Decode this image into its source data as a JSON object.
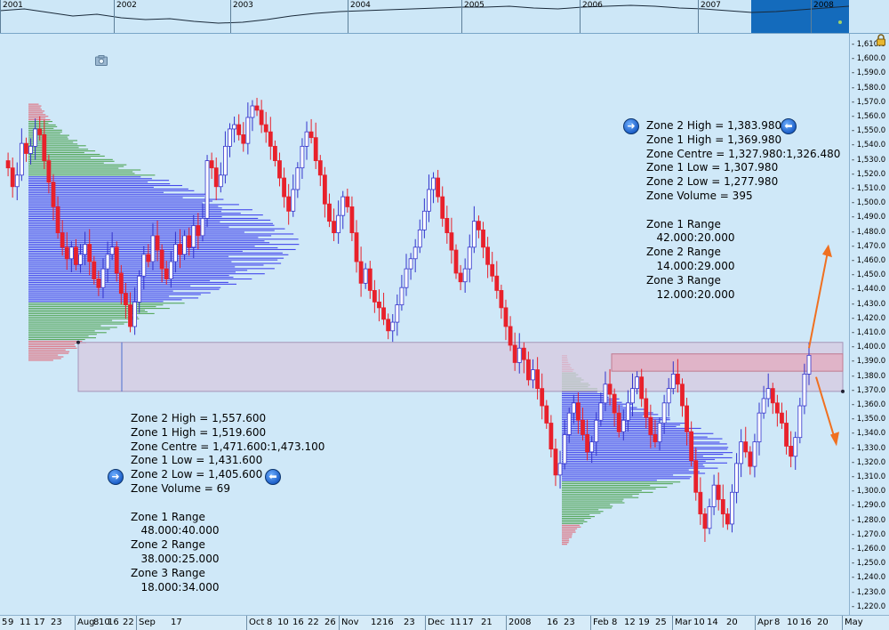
{
  "overview": {
    "years": [
      "2001",
      "2002",
      "2003",
      "2004",
      "2005",
      "2006",
      "2007",
      "2008"
    ]
  },
  "annotations": {
    "left": {
      "lines": [
        "Zone 2 High = 1,557.600",
        "Zone 1 High = 1,519.600",
        "Zone Centre = 1,471.600:1,473.100",
        "Zone 1 Low = 1,431.600",
        "Zone 2 Low = 1,405.600",
        "Zone Volume = 69",
        "",
        "Zone 1 Range",
        "   48.000:40.000",
        "Zone 2 Range",
        "   38.000:25.000",
        "Zone 3 Range",
        "   18.000:34.000"
      ]
    },
    "right": {
      "lines": [
        "Zone 2 High = 1,383.980",
        "Zone 1 High = 1,369.980",
        "Zone Centre = 1,327.980:1,326.480",
        "Zone 1 Low = 1,307.980",
        "Zone 2 Low = 1,277.980",
        "Zone Volume = 395",
        "",
        "Zone 1 Range",
        "   42.000:20.000",
        "Zone 2 Range",
        "   14.000:29.000",
        "Zone 3 Range",
        "   12.000:20.000"
      ]
    }
  },
  "icons": {
    "nav_next": "arrow-right-circle-icon",
    "nav_prev": "arrow-left-circle-icon",
    "lock": "lock-icon",
    "camera": "camera-icon"
  },
  "colors": {
    "background": "#cfe8f8",
    "up_candle": "#3333cc",
    "down_candle": "#e8212b",
    "zone_blue": "#2b2bea",
    "zone_green": "#3e9b3e",
    "zone_red": "#e25a6a",
    "shaded_zone": "#d7c9e0",
    "arrow": "#f07020"
  },
  "chart_data": {
    "type": "candlestick",
    "y_axis": {
      "ylim": [
        1215,
        1618
      ],
      "ticks": [
        "1,610.0",
        "1,600.0",
        "1,590.0",
        "1,580.0",
        "1,570.0",
        "1,560.0",
        "1,550.0",
        "1,540.0",
        "1,530.0",
        "1,520.0",
        "1,510.0",
        "1,500.0",
        "1,490.0",
        "1,480.0",
        "1,470.0",
        "1,460.0",
        "1,450.0",
        "1,440.0",
        "1,430.0",
        "1,420.0",
        "1,410.0",
        "1,400.0",
        "1,390.0",
        "1,380.0",
        "1,370.0",
        "1,360.0",
        "1,350.0",
        "1,340.0",
        "1,330.0",
        "1,320.0",
        "1,310.0",
        "1,300.0",
        "1,290.0",
        "1,280.0",
        "1,270.0",
        "1,260.0",
        "1,250.0",
        "1,240.0",
        "1,230.0",
        "1,220.0"
      ]
    },
    "x_axis": {
      "ticks": [
        "5",
        "9",
        "11",
        "17",
        "23",
        "Aug",
        "8",
        "10",
        "16",
        "22",
        "Sep",
        "17",
        "Oct",
        "8",
        "10",
        "16",
        "22",
        "26",
        "Nov",
        "12",
        "16",
        "23",
        "Dec",
        "11",
        "17",
        "21",
        "2008",
        "16",
        "23",
        "Feb",
        "8",
        "12",
        "19",
        "25",
        "Mar",
        "10",
        "14",
        "20",
        "Apr",
        "8",
        "10",
        "16",
        "20",
        "May"
      ]
    },
    "close_series": [
      1530,
      1525,
      1512,
      1520,
      1542,
      1535,
      1540,
      1552,
      1548,
      1530,
      1515,
      1498,
      1480,
      1470,
      1462,
      1470,
      1458,
      1465,
      1472,
      1460,
      1448,
      1442,
      1455,
      1465,
      1470,
      1452,
      1438,
      1430,
      1415,
      1432,
      1450,
      1465,
      1460,
      1478,
      1468,
      1455,
      1448,
      1460,
      1472,
      1465,
      1478,
      1470,
      1485,
      1478,
      1490,
      1530,
      1525,
      1512,
      1520,
      1540,
      1552,
      1555,
      1548,
      1542,
      1560,
      1568,
      1565,
      1555,
      1550,
      1540,
      1530,
      1518,
      1505,
      1495,
      1510,
      1525,
      1540,
      1550,
      1546,
      1530,
      1520,
      1500,
      1488,
      1480,
      1492,
      1505,
      1498,
      1480,
      1460,
      1445,
      1455,
      1440,
      1432,
      1428,
      1420,
      1412,
      1418,
      1430,
      1442,
      1455,
      1462,
      1470,
      1482,
      1495,
      1510,
      1518,
      1505,
      1490,
      1480,
      1468,
      1452,
      1446,
      1455,
      1470,
      1488,
      1482,
      1470,
      1458,
      1450,
      1440,
      1428,
      1415,
      1402,
      1390,
      1400,
      1392,
      1378,
      1385,
      1372,
      1360,
      1348,
      1330,
      1312,
      1320,
      1340,
      1355,
      1362,
      1350,
      1340,
      1328,
      1335,
      1350,
      1362,
      1375,
      1368,
      1355,
      1342,
      1350,
      1362,
      1372,
      1380,
      1365,
      1352,
      1340,
      1335,
      1348,
      1362,
      1372,
      1382,
      1375,
      1360,
      1342,
      1322,
      1300,
      1285,
      1275,
      1290,
      1305,
      1295,
      1285,
      1278,
      1300,
      1320,
      1335,
      1328,
      1318,
      1335,
      1355,
      1365,
      1372,
      1362,
      1355,
      1348,
      1332,
      1325,
      1338,
      1360,
      1382,
      1395
    ],
    "volume_profiles": [
      {
        "name": "left",
        "centre": 1472.35,
        "zone1": [
          1431.6,
          1519.6
        ],
        "zone2": [
          1405.6,
          1557.6
        ]
      },
      {
        "name": "right",
        "centre": 1327.23,
        "zone1": [
          1307.98,
          1369.98
        ],
        "zone2": [
          1277.98,
          1383.98
        ]
      }
    ],
    "horizontal_zones": [
      [
        1370,
        1404
      ],
      [
        1384,
        1396
      ]
    ]
  }
}
